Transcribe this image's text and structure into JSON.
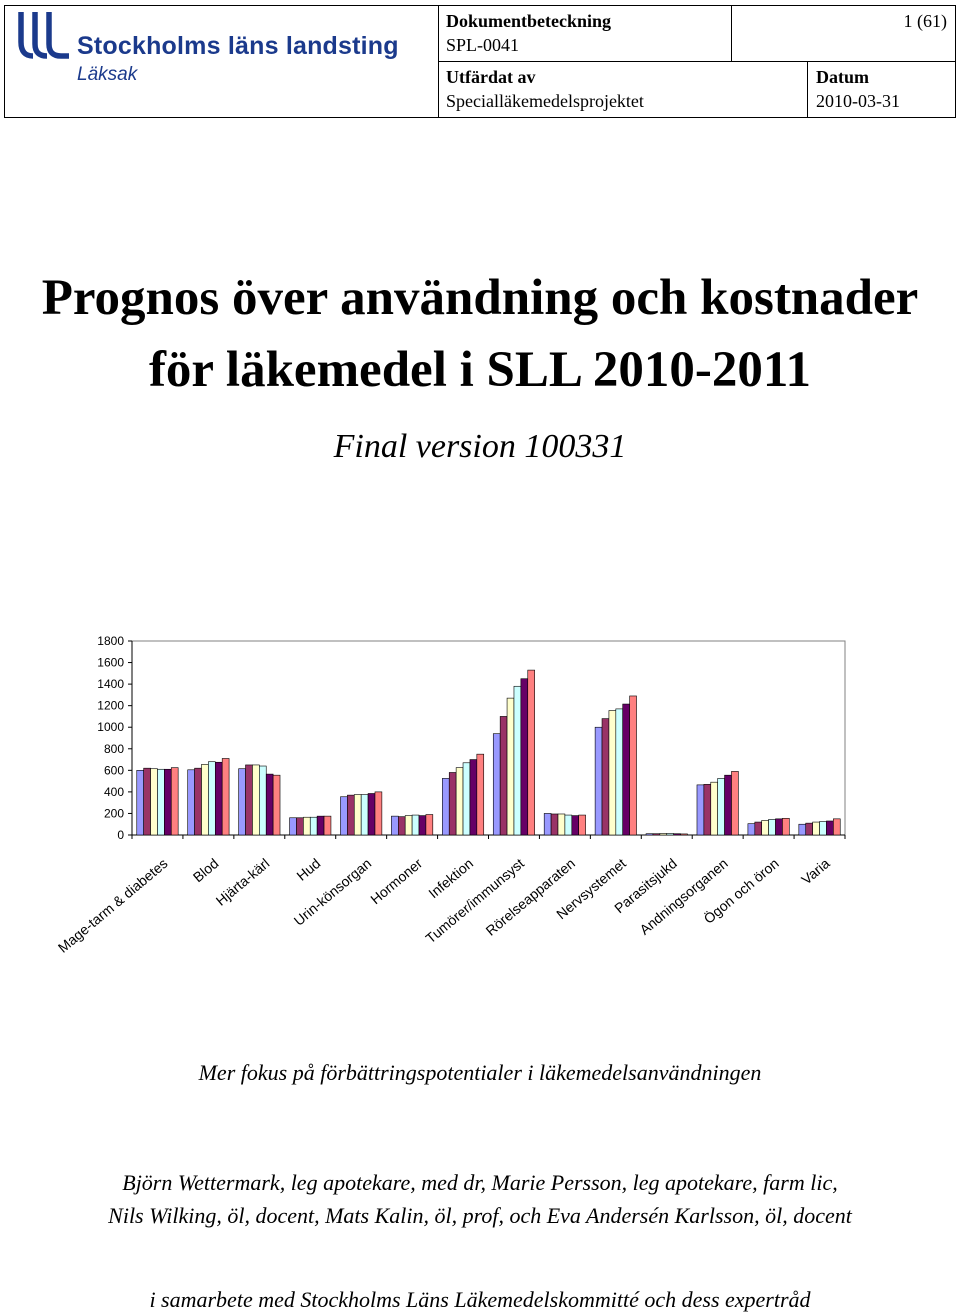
{
  "header": {
    "logo": {
      "name": "Stockholms läns landsting",
      "subtitle": "Läksak"
    },
    "doc_label": "Dokumentbeteckning",
    "doc_value": "SPL-0041",
    "page": "1 (61)",
    "issued_label": "Utfärdat av",
    "issued_value": "Specialläkemedelsprojektet",
    "date_label": "Datum",
    "date_value": "2010-03-31"
  },
  "title": {
    "line1": "Prognos över användning och kostnader",
    "line2": "för läkemedel i SLL 2010-2011"
  },
  "subtitle": "Final version 100331",
  "chart_data": {
    "type": "bar",
    "title": "",
    "xlabel": "",
    "ylabel": "",
    "ylim": [
      0,
      1800
    ],
    "yticks": [
      0,
      200,
      400,
      600,
      800,
      1000,
      1200,
      1400,
      1600,
      1800
    ],
    "grid": false,
    "legend": "none",
    "colors": [
      "#9999ff",
      "#993366",
      "#ffffcc",
      "#ccffff",
      "#660066",
      "#ff8080"
    ],
    "categories": [
      "Mage-tarm & diabetes",
      "Blod",
      "Hjärta-kärl",
      "Hud",
      "Urin-könsorgan",
      "Hormoner",
      "Infektion",
      "Tumörer/immunsyst",
      "Rörelseapparaten",
      "Nervsystemet",
      "Parasitsjukd",
      "Andningsorganen",
      "Ögon och öron",
      "Varia"
    ],
    "series": [
      {
        "values": [
          600,
          605,
          615,
          160,
          355,
          175,
          525,
          940,
          200,
          1000,
          12,
          465,
          105,
          100
        ]
      },
      {
        "values": [
          620,
          620,
          650,
          160,
          370,
          170,
          580,
          1100,
          195,
          1080,
          12,
          470,
          120,
          110
        ]
      },
      {
        "values": [
          615,
          655,
          650,
          165,
          375,
          180,
          625,
          1270,
          195,
          1155,
          14,
          490,
          135,
          120
        ]
      },
      {
        "values": [
          610,
          680,
          640,
          165,
          375,
          185,
          670,
          1380,
          185,
          1170,
          14,
          525,
          145,
          125
        ]
      },
      {
        "values": [
          610,
          675,
          565,
          175,
          385,
          180,
          700,
          1450,
          180,
          1215,
          12,
          555,
          150,
          130
        ]
      },
      {
        "values": [
          625,
          710,
          555,
          175,
          400,
          190,
          750,
          1530,
          185,
          1290,
          10,
          590,
          155,
          150
        ]
      }
    ]
  },
  "tagline": "Mer fokus på förbättringspotentialer i läkemedelsanvändningen",
  "authors": {
    "line1": "Björn Wettermark, leg apotekare, med dr, Marie Persson, leg apotekare, farm lic,",
    "line2": "Nils Wilking, öl, docent, Mats Kalin, öl, prof, och Eva Andersén Karlsson, öl, docent"
  },
  "collaboration": "i samarbete med Stockholms Läns Läkemedelskommitté och dess expertråd"
}
